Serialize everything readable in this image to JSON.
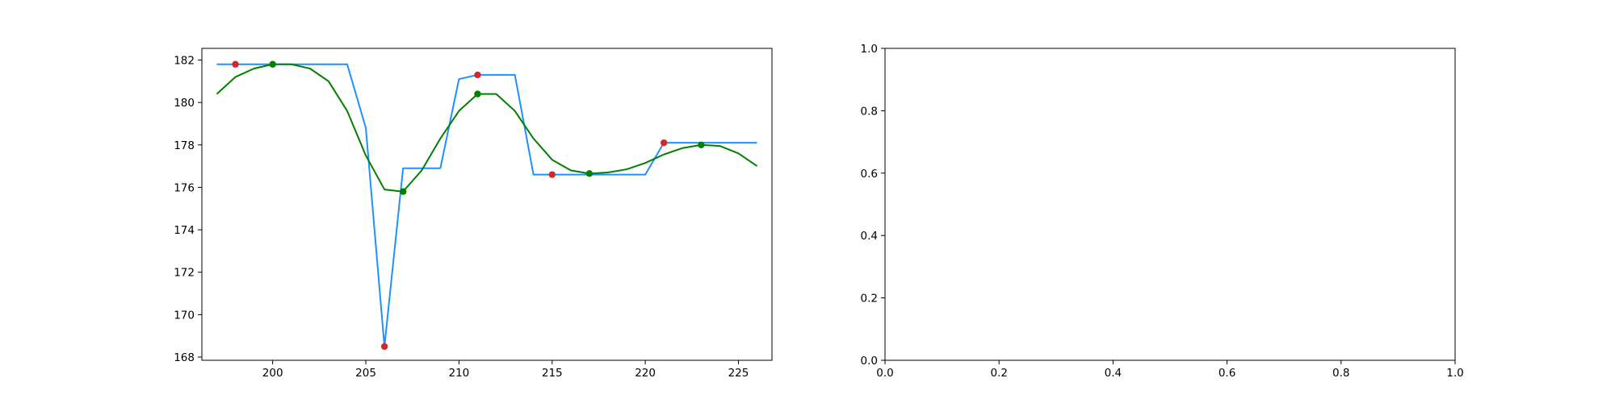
{
  "colors": {
    "raw_line": "#1e90ff",
    "smooth_line": "#008000",
    "raw_points": "#d62728",
    "smooth_points": "#008000",
    "axes": "#000000",
    "background": "#ffffff"
  },
  "chart_data": [
    {
      "type": "line",
      "title": "",
      "xlabel": "",
      "ylabel": "",
      "xlim": [
        196.2,
        226.8
      ],
      "ylim": [
        167.85,
        182.55
      ],
      "xticks": [
        200,
        205,
        210,
        215,
        220,
        225
      ],
      "yticks": [
        168,
        170,
        172,
        174,
        176,
        178,
        180,
        182
      ],
      "grid": false,
      "legend": "none",
      "series": [
        {
          "x": [
            197,
            198,
            199,
            200,
            201,
            202,
            203,
            204,
            205,
            206,
            207,
            208,
            209,
            210,
            211,
            212,
            213,
            214,
            215,
            216,
            217,
            218,
            219,
            220,
            221,
            222,
            223,
            224,
            225,
            226
          ],
          "y": [
            181.8,
            181.8,
            181.8,
            181.8,
            181.8,
            181.8,
            181.8,
            181.8,
            178.8,
            168.5,
            176.9,
            176.9,
            176.9,
            181.1,
            181.3,
            181.3,
            181.3,
            176.6,
            176.6,
            176.6,
            176.6,
            176.6,
            176.6,
            176.6,
            178.1,
            178.1,
            178.1,
            178.1,
            178.1,
            178.1
          ],
          "color": "#1e90ff"
        },
        {
          "x": [
            197,
            198,
            199,
            200,
            201,
            202,
            203,
            204,
            205,
            206,
            207,
            208,
            209,
            210,
            211,
            212,
            213,
            214,
            215,
            216,
            217,
            218,
            219,
            220,
            221,
            222,
            223,
            224,
            225,
            226
          ],
          "y": [
            180.4,
            181.2,
            181.6,
            181.8,
            181.8,
            181.6,
            181.0,
            179.6,
            177.5,
            175.9,
            175.8,
            176.8,
            178.3,
            179.6,
            180.4,
            180.4,
            179.6,
            178.3,
            177.3,
            176.8,
            176.65,
            176.7,
            176.85,
            177.15,
            177.55,
            177.85,
            178.0,
            177.95,
            177.6,
            177.0
          ],
          "color": "#008000"
        },
        {
          "type": "scatter",
          "x": [
            198,
            206,
            211,
            215,
            221
          ],
          "y": [
            181.8,
            168.5,
            181.3,
            176.6,
            178.1
          ],
          "color": "#d62728"
        },
        {
          "type": "scatter",
          "x": [
            200,
            207,
            211,
            217,
            223
          ],
          "y": [
            181.8,
            175.8,
            180.4,
            176.65,
            178.0
          ],
          "color": "#008000"
        }
      ]
    },
    {
      "type": "line",
      "title": "",
      "xlabel": "",
      "ylabel": "",
      "xlim": [
        0,
        1
      ],
      "ylim": [
        0,
        1
      ],
      "xticks": [
        0.0,
        0.2,
        0.4,
        0.6,
        0.8,
        1.0
      ],
      "yticks": [
        0.0,
        0.2,
        0.4,
        0.6,
        0.8,
        1.0
      ],
      "grid": false,
      "legend": "none",
      "series": []
    }
  ]
}
